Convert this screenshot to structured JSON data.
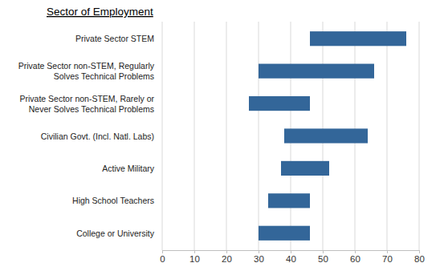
{
  "chart_data": {
    "type": "bar",
    "orientation": "horizontal",
    "title": "Sector of Employment",
    "categories": [
      "Private Sector STEM",
      "Private Sector non-STEM, Regularly Solves Technical Problems",
      "Private Sector non-STEM, Rarely or Never Solves Technical Problems",
      "Civilian Govt. (Incl. Natl. Labs)",
      "Active Military",
      "High School Teachers",
      "College or University"
    ],
    "low": [
      46,
      30,
      27,
      38,
      37,
      33,
      30
    ],
    "high": [
      76,
      66,
      46,
      64,
      52,
      46,
      46
    ],
    "color": "#336699",
    "xlim": [
      0,
      80
    ],
    "xticks": [
      0,
      10,
      20,
      30,
      40,
      50,
      60,
      70,
      80
    ],
    "grid": true
  }
}
